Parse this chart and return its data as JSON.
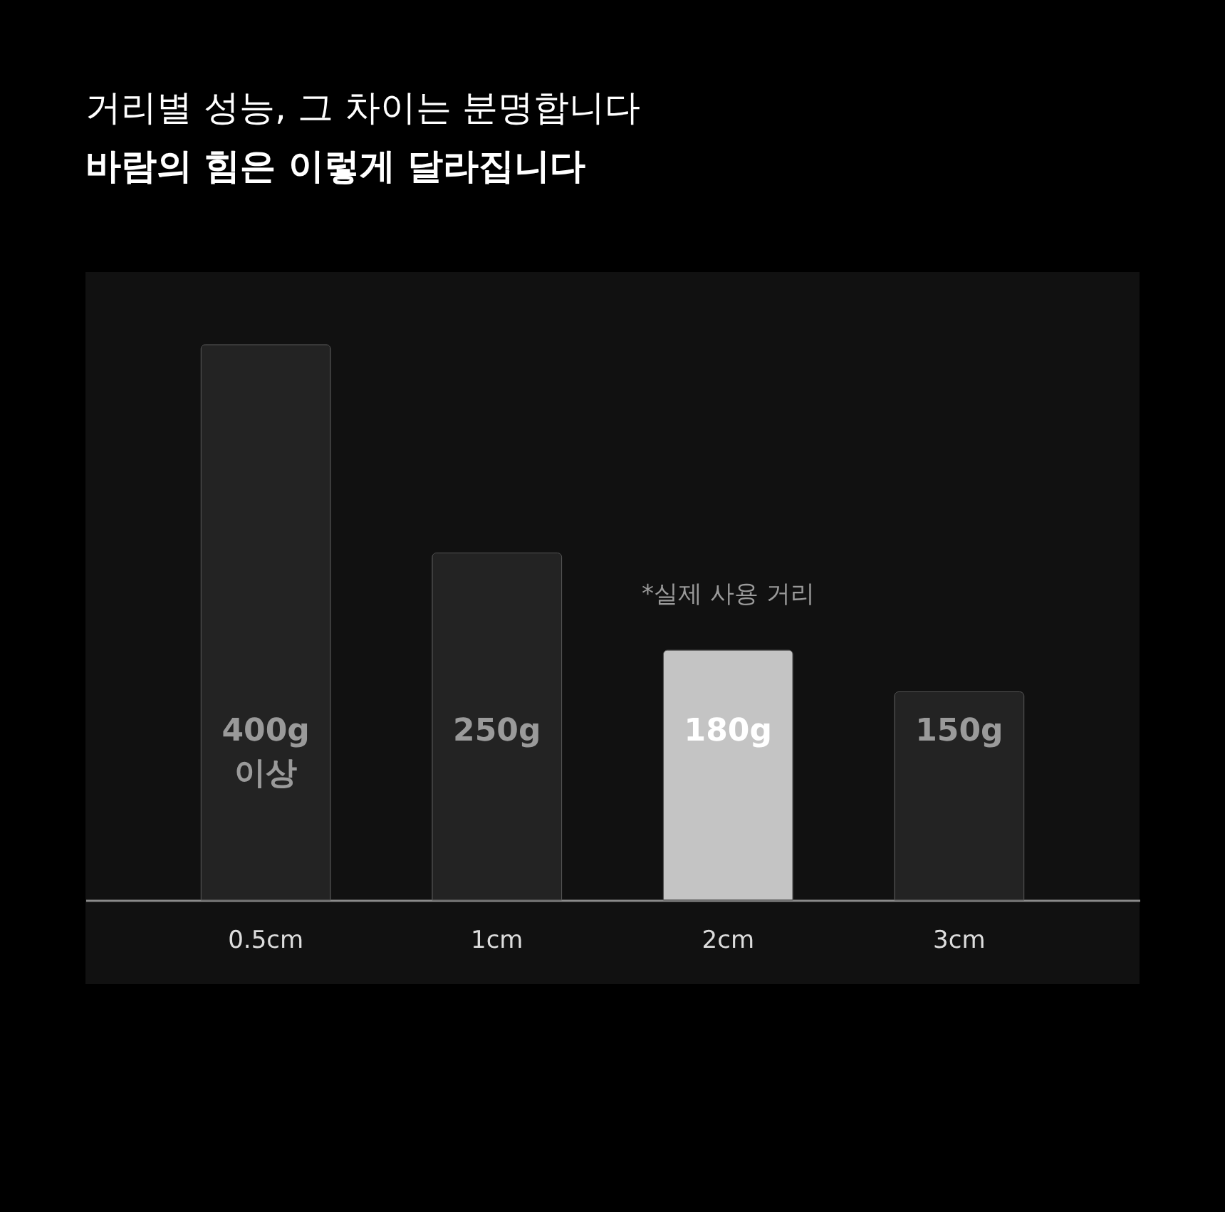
{
  "chart_data": {
    "type": "bar",
    "title": "거리별 성능, 그 차이는 분명합니다",
    "subtitle": "바람의 힘은 이렇게 달라집니다",
    "categories": [
      "0.5cm",
      "1cm",
      "2cm",
      "3cm"
    ],
    "values": [
      400,
      250,
      180,
      150
    ],
    "colors": [
      "#232323",
      "#232323",
      "#c4c4c4",
      "#232323"
    ],
    "value_labels": [
      "400g 이상",
      "250g",
      "180g",
      "150g"
    ],
    "annotations": [
      "*실제 사용 거리"
    ]
  }
}
